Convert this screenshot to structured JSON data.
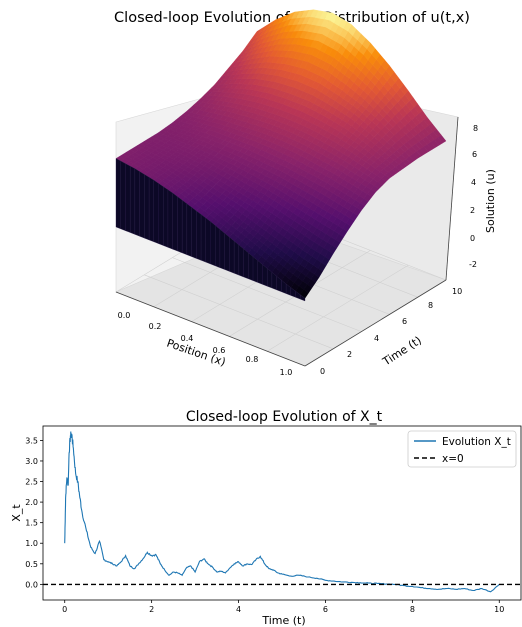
{
  "chart_data": [
    {
      "type": "surface",
      "title": "Closed-loop Evolution of the Distribution of u(t,x)",
      "xlabel": "Position (x)",
      "ylabel": "Time (t)",
      "zlabel": "Solution (u)",
      "x_ticks": [
        "0.0",
        "0.2",
        "0.4",
        "0.6",
        "0.8",
        "1.0"
      ],
      "y_ticks": [
        "0",
        "2",
        "4",
        "6",
        "8",
        "10"
      ],
      "z_ticks": [
        "-2",
        "0",
        "2",
        "4",
        "6",
        "8"
      ],
      "xlim": [
        0,
        1
      ],
      "ylim": [
        0,
        10
      ],
      "zlim": [
        -3,
        8.5
      ],
      "colormap": "inferno",
      "surface": {
        "x": [
          0,
          0.1,
          0.2,
          0.3,
          0.4,
          0.5,
          0.6,
          0.7,
          0.8,
          0.9,
          1.0
        ],
        "t": [
          0,
          1,
          2,
          3,
          4,
          5,
          6,
          7,
          8,
          9,
          10
        ],
        "u": [
          [
            2.0,
            1.8,
            1.5,
            1.1,
            0.6,
            0.1,
            -0.5,
            -1.1,
            -1.7,
            -2.3,
            -2.8
          ],
          [
            2.0,
            1.8,
            1.6,
            1.3,
            0.9,
            0.5,
            0.0,
            -0.5,
            -1.0,
            -1.5,
            -1.9
          ],
          [
            2.0,
            1.9,
            1.8,
            1.6,
            1.3,
            1.0,
            0.7,
            0.3,
            -0.1,
            -0.5,
            -0.8
          ],
          [
            2.0,
            2.0,
            2.0,
            1.9,
            1.8,
            1.6,
            1.4,
            1.1,
            0.8,
            0.5,
            0.2
          ],
          [
            2.1,
            2.2,
            2.3,
            2.3,
            2.3,
            2.2,
            2.1,
            1.9,
            1.7,
            1.4,
            1.1
          ],
          [
            2.3,
            2.5,
            2.7,
            2.8,
            2.9,
            2.9,
            2.8,
            2.6,
            2.4,
            2.1,
            1.8
          ],
          [
            2.6,
            3.0,
            3.3,
            3.5,
            3.6,
            3.6,
            3.5,
            3.3,
            3.0,
            2.6,
            2.2
          ],
          [
            3.0,
            3.6,
            4.1,
            4.4,
            4.5,
            4.5,
            4.3,
            4.0,
            3.5,
            2.9,
            2.3
          ],
          [
            3.6,
            4.4,
            5.1,
            5.5,
            5.7,
            5.6,
            5.2,
            4.7,
            4.0,
            3.2,
            2.4
          ],
          [
            4.2,
            5.3,
            6.2,
            6.8,
            7.1,
            6.9,
            6.3,
            5.5,
            4.5,
            3.4,
            2.4
          ],
          [
            5.0,
            6.4,
            7.5,
            8.2,
            8.5,
            8.2,
            7.4,
            6.3,
            5.0,
            3.6,
            2.4
          ]
        ]
      }
    },
    {
      "type": "line",
      "title": "Closed-loop Evolution of X_t",
      "xlabel": "Time (t)",
      "ylabel": "X_t",
      "xlim": [
        -0.5,
        10.5
      ],
      "ylim": [
        -0.38,
        3.85
      ],
      "x_ticks": [
        "0",
        "2",
        "4",
        "6",
        "8",
        "10"
      ],
      "y_ticks": [
        "0.0",
        "0.5",
        "1.0",
        "1.5",
        "2.0",
        "2.5",
        "3.0",
        "3.5"
      ],
      "legend_position": "top-right",
      "series": [
        {
          "name": "Evolution X_t",
          "color": "#1f77b4",
          "style": "solid",
          "x": [
            0,
            0.02,
            0.05,
            0.08,
            0.1,
            0.13,
            0.16,
            0.2,
            0.25,
            0.3,
            0.35,
            0.4,
            0.5,
            0.6,
            0.7,
            0.8,
            0.9,
            1.0,
            1.1,
            1.2,
            1.3,
            1.4,
            1.5,
            1.6,
            1.7,
            1.8,
            1.9,
            2.0,
            2.1,
            2.2,
            2.3,
            2.4,
            2.5,
            2.6,
            2.7,
            2.8,
            2.9,
            3.0,
            3.1,
            3.2,
            3.3,
            3.4,
            3.5,
            3.6,
            3.7,
            3.8,
            3.9,
            4.0,
            4.1,
            4.2,
            4.3,
            4.4,
            4.5,
            4.6,
            4.7,
            4.8,
            4.9,
            5.0,
            5.2,
            5.4,
            5.6,
            5.8,
            6.0,
            6.2,
            6.4,
            6.6,
            6.8,
            7.0,
            7.2,
            7.4,
            7.6,
            7.8,
            8.0,
            8.2,
            8.4,
            8.6,
            8.8,
            9.0,
            9.2,
            9.4,
            9.6,
            9.8,
            10.0
          ],
          "values": [
            1.0,
            2.1,
            2.6,
            2.4,
            3.2,
            3.6,
            3.65,
            3.3,
            2.7,
            2.5,
            2.1,
            1.75,
            1.3,
            0.9,
            0.75,
            1.05,
            0.6,
            0.55,
            0.5,
            0.45,
            0.55,
            0.7,
            0.45,
            0.38,
            0.5,
            0.62,
            0.78,
            0.7,
            0.72,
            0.5,
            0.35,
            0.22,
            0.3,
            0.28,
            0.22,
            0.4,
            0.45,
            0.3,
            0.55,
            0.62,
            0.5,
            0.42,
            0.3,
            0.32,
            0.28,
            0.4,
            0.5,
            0.55,
            0.45,
            0.5,
            0.48,
            0.6,
            0.68,
            0.5,
            0.38,
            0.35,
            0.28,
            0.25,
            0.2,
            0.22,
            0.18,
            0.15,
            0.1,
            0.08,
            0.06,
            0.05,
            0.04,
            0.03,
            0.02,
            0.01,
            0.0,
            -0.03,
            -0.05,
            -0.08,
            -0.1,
            -0.12,
            -0.1,
            -0.12,
            -0.1,
            -0.15,
            -0.1,
            -0.18,
            0.0
          ]
        },
        {
          "name": "x=0",
          "color": "#000000",
          "style": "dashed",
          "x": [
            -0.5,
            10.5
          ],
          "values": [
            0,
            0
          ]
        }
      ]
    }
  ]
}
